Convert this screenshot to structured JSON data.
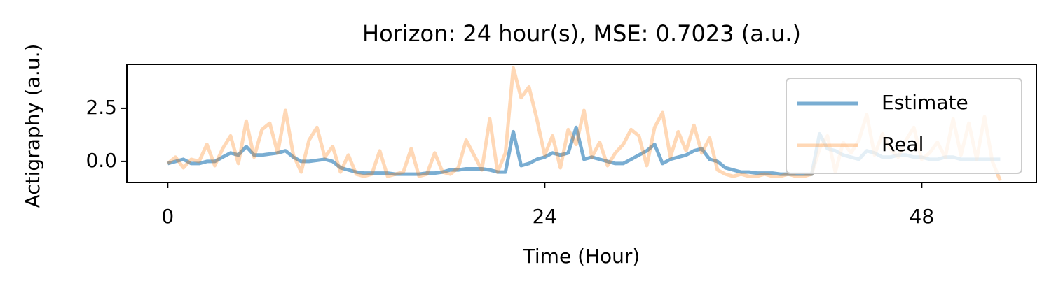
{
  "chart_data": {
    "type": "line",
    "title": "Horizon: 24 hour(s), MSE: 0.7023 (a.u.)",
    "x_label": "Time (Hour)",
    "y_label": "Actigraphy (a.u.)",
    "x": [
      0,
      0.5,
      1,
      1.5,
      2,
      2.5,
      3,
      3.5,
      4,
      4.5,
      5,
      5.5,
      6,
      6.5,
      7,
      7.5,
      8,
      8.5,
      9,
      9.5,
      10,
      10.5,
      11,
      11.5,
      12,
      12.5,
      13,
      13.5,
      14,
      14.5,
      15,
      15.5,
      16,
      16.5,
      17,
      17.5,
      18,
      18.5,
      19,
      19.5,
      20,
      20.5,
      21,
      21.5,
      22,
      22.5,
      23,
      23.5,
      24,
      24.5,
      25,
      25.5,
      26,
      26.5,
      27,
      27.5,
      28,
      28.5,
      29,
      29.5,
      30,
      30.5,
      31,
      31.5,
      32,
      32.5,
      33,
      33.5,
      34,
      34.5,
      35,
      35.5,
      36,
      36.5,
      37,
      37.5,
      38,
      38.5,
      39,
      39.5,
      40,
      40.5,
      41,
      41.5,
      42,
      42.5,
      43,
      43.5,
      44,
      44.5,
      45,
      45.5,
      46,
      46.5,
      47,
      47.5,
      48,
      48.5,
      49,
      49.5,
      50,
      50.5,
      51,
      51.5,
      52,
      52.5,
      53
    ],
    "series": [
      {
        "name": "Estimate",
        "color": "#1f77b4",
        "opacity": 0.6,
        "values": [
          -0.1,
          0.0,
          0.1,
          -0.1,
          -0.1,
          0.0,
          0.0,
          0.2,
          0.4,
          0.3,
          0.7,
          0.3,
          0.3,
          0.35,
          0.4,
          0.5,
          0.2,
          0.0,
          0.0,
          0.05,
          0.1,
          0.0,
          -0.3,
          -0.4,
          -0.5,
          -0.55,
          -0.55,
          -0.55,
          -0.55,
          -0.6,
          -0.6,
          -0.6,
          -0.6,
          -0.55,
          -0.55,
          -0.5,
          -0.4,
          -0.4,
          -0.35,
          -0.35,
          -0.35,
          -0.4,
          -0.5,
          -0.5,
          1.4,
          -0.2,
          -0.1,
          0.1,
          0.2,
          0.4,
          0.3,
          0.4,
          1.6,
          0.1,
          0.2,
          0.1,
          0.0,
          -0.1,
          -0.1,
          0.1,
          0.3,
          0.5,
          0.8,
          -0.1,
          0.1,
          0.2,
          0.3,
          0.5,
          0.6,
          0.1,
          0.0,
          -0.3,
          -0.4,
          -0.5,
          -0.5,
          -0.55,
          -0.55,
          -0.55,
          -0.6,
          -0.6,
          -0.6,
          -0.6,
          -0.6,
          1.3,
          0.6,
          0.5,
          0.3,
          0.2,
          0.1,
          0.5,
          0.4,
          0.2,
          0.2,
          0.3,
          0.3,
          0.2,
          0.2,
          0.1,
          0.1,
          0.2,
          0.2,
          0.1,
          0.1,
          0.1,
          0.1,
          0.1,
          0.1
        ]
      },
      {
        "name": "Real",
        "color": "#ff7f0e",
        "opacity": 0.3,
        "values": [
          -0.1,
          0.2,
          -0.3,
          0.1,
          0.0,
          0.8,
          -0.2,
          0.6,
          1.2,
          -0.1,
          1.9,
          0.2,
          1.5,
          1.8,
          0.4,
          2.4,
          0.3,
          -0.5,
          1.0,
          1.6,
          0.2,
          0.7,
          -0.5,
          0.3,
          -0.6,
          -0.7,
          -0.6,
          0.5,
          -0.7,
          -0.6,
          -0.5,
          0.6,
          -0.7,
          -0.6,
          0.4,
          -0.5,
          -0.6,
          -0.3,
          1.0,
          0.3,
          -0.4,
          2.0,
          -0.5,
          0.4,
          4.4,
          3.0,
          3.5,
          2.0,
          0.3,
          1.2,
          -0.3,
          1.5,
          0.8,
          2.4,
          0.2,
          0.9,
          -0.2,
          0.4,
          0.8,
          1.5,
          1.2,
          -0.2,
          1.6,
          2.3,
          0.2,
          1.4,
          0.5,
          1.7,
          0.4,
          1.1,
          -0.4,
          -0.6,
          -0.7,
          -0.6,
          -0.7,
          -0.7,
          -0.6,
          -0.7,
          -0.7,
          -0.6,
          -0.7,
          -0.7,
          -0.6,
          0.6,
          1.2,
          -0.5,
          0.9,
          0.4,
          1.0,
          2.2,
          0.3,
          1.3,
          0.6,
          0.2,
          1.0,
          1.6,
          0.1,
          0.4,
          0.9,
          0.2,
          2.0,
          0.3,
          1.8,
          0.1,
          2.1,
          0.0,
          -0.9
        ]
      }
    ],
    "xlim": [
      -2.6,
      55.3
    ],
    "ylim": [
      -0.99,
      4.57
    ],
    "xticks": [
      0,
      24,
      48
    ],
    "yticks": [
      {
        "value": 0,
        "label": "0.0"
      },
      2.5
    ],
    "grid": false,
    "legend": "upper right"
  }
}
